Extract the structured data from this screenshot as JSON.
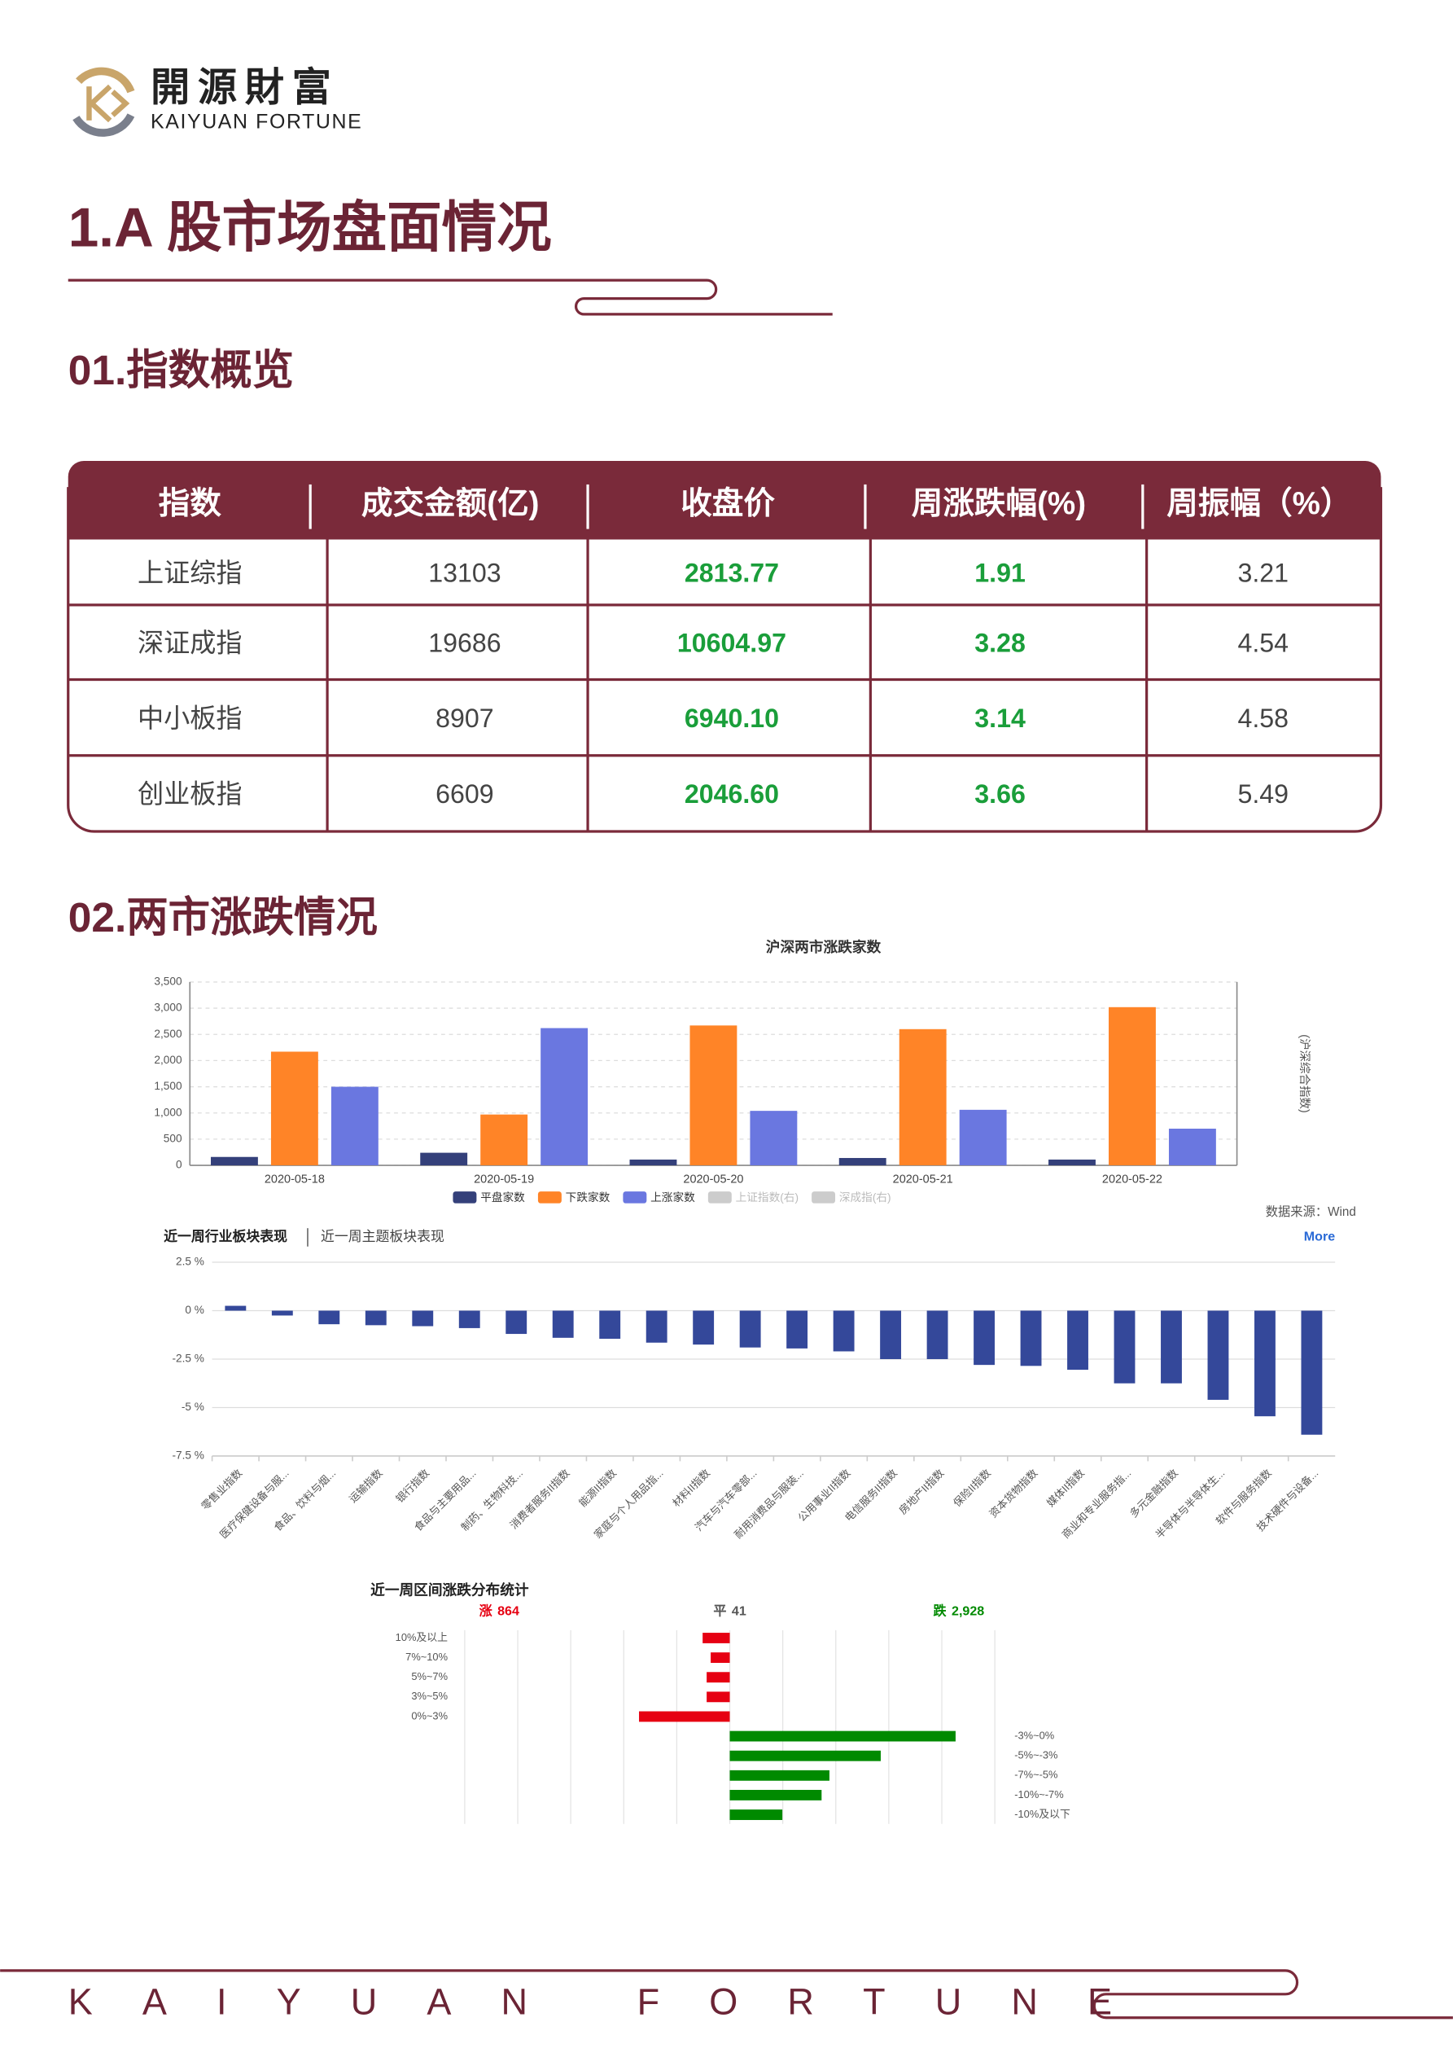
{
  "header": {
    "logo_cn": "開源財富",
    "logo_en": "KAIYUAN FORTUNE"
  },
  "section_title": "1.A 股市场盘面情况",
  "sub1": "01.指数概览",
  "table": {
    "headers": [
      "指数",
      "成交金额(亿)",
      "收盘价",
      "周涨跌幅(%)",
      "周振幅（%）"
    ],
    "rows": [
      [
        "上证综指",
        "13103",
        "2813.77",
        "1.91",
        "3.21"
      ],
      [
        "深证成指",
        "19686",
        "10604.97",
        "3.28",
        "4.54"
      ],
      [
        "中小板指",
        "8907",
        "6940.10",
        "3.14",
        "4.58"
      ],
      [
        "创业板指",
        "6609",
        "2046.60",
        "3.66",
        "5.49"
      ]
    ]
  },
  "sub2": "02.两市涨跌情况",
  "chart_data": [
    {
      "type": "bar",
      "title": "沪深两市涨跌家数",
      "categories": [
        "2020-05-18",
        "2020-05-19",
        "2020-05-20",
        "2020-05-21",
        "2020-05-22"
      ],
      "series": [
        {
          "name": "平盘家数",
          "color": "#34407a",
          "values": [
            160,
            240,
            110,
            140,
            110
          ]
        },
        {
          "name": "下跌家数",
          "color": "#ff8427",
          "values": [
            2170,
            970,
            2670,
            2600,
            3020
          ]
        },
        {
          "name": "上涨家数",
          "color": "#6a77e0",
          "values": [
            1500,
            2620,
            1040,
            1060,
            700
          ]
        }
      ],
      "inactive_legend": [
        {
          "name": "上证指数(右)",
          "color": "#cccccc"
        },
        {
          "name": "深成指(右)",
          "color": "#cccccc"
        }
      ],
      "y2_label": "(沪深综合指数)",
      "source": "数据来源：Wind",
      "ylim": [
        0,
        3500
      ],
      "yticks": [
        0,
        {
          "value": 500,
          "label": "500"
        },
        {
          "value": 1000,
          "label": "1,000"
        },
        {
          "value": 1500,
          "label": "1,500"
        },
        {
          "value": 2000,
          "label": "2,000"
        },
        {
          "value": 2500,
          "label": "2,500"
        },
        {
          "value": 3000,
          "label": "3,000"
        },
        {
          "value": 3500,
          "label": "3,500"
        }
      ],
      "grid": true
    },
    {
      "type": "bar",
      "tabs": [
        "近一周行业板块表现",
        "近一周主题板块表现"
      ],
      "more": "More",
      "color": "#34489a",
      "categories": [
        "零售业指数",
        "医疗保健设备与服...",
        "食品、饮料与烟...",
        "运输指数",
        "银行指数",
        "食品与主要用品...",
        "制药、生物科技...",
        "消费者服务II指数",
        "能源II指数",
        "家庭与个人用品指...",
        "材料II指数",
        "汽车与汽车零部...",
        "耐用消费品与服装...",
        "公用事业II指数",
        "电信服务II指数",
        "房地产II指数",
        "保险II指数",
        "资本货物指数",
        "媒体II指数",
        "商业和专业服务指...",
        "多元金融指数",
        "半导体与半导体生...",
        "软件与服务指数",
        "技术硬件与设备..."
      ],
      "values": [
        0.25,
        -0.25,
        -0.7,
        -0.75,
        -0.8,
        -0.9,
        -1.2,
        -1.4,
        -1.45,
        -1.65,
        -1.75,
        -1.9,
        -1.95,
        -2.1,
        -2.5,
        -2.5,
        -2.8,
        -2.85,
        -3.05,
        -3.75,
        -3.75,
        -4.6,
        -5.45,
        -6.4
      ],
      "ylim": [
        -7.5,
        2.5
      ],
      "yticks": [
        {
          "value": 2.5,
          "label": "2.5 %"
        },
        {
          "value": 0,
          "label": "0 %"
        },
        {
          "value": -2.5,
          "label": "-2.5 %"
        },
        {
          "value": -5,
          "label": "-5 %"
        },
        {
          "value": -7.5,
          "label": "-7.5 %"
        }
      ],
      "grid": true
    },
    {
      "type": "butterfly",
      "title": "近一周区间涨跌分布统计",
      "summary": [
        {
          "name": "涨",
          "value": 864,
          "color": "#e60012"
        },
        {
          "name": "平",
          "value": 41,
          "color": "#555555"
        },
        {
          "name": "跌",
          "value": 2928,
          "value_label": "2,928",
          "color": "#008a00"
        }
      ],
      "categories": [
        "10%及以上",
        "7%~10%",
        "5%~7%",
        "3%~5%",
        "0%~3%",
        "-3%~0%",
        "-5%~-3%",
        "-7%~-5%",
        "-10%~-7%",
        "-10%及以下"
      ],
      "series": [
        {
          "name": "涨",
          "color": "#e60012",
          "values": [
            128,
            90,
            109,
            109,
            428,
            null,
            null,
            null,
            null,
            null
          ]
        },
        {
          "name": "跌",
          "color": "#008a00",
          "values": [
            null,
            null,
            null,
            null,
            null,
            1065,
            712,
            470,
            433,
            248
          ]
        }
      ],
      "xlim": [
        0,
        1250
      ],
      "xticks": [
        0,
        250,
        500,
        750,
        1000,
        1250
      ],
      "grid": true
    }
  ],
  "footer": "KAIYUAN FORTUNE"
}
